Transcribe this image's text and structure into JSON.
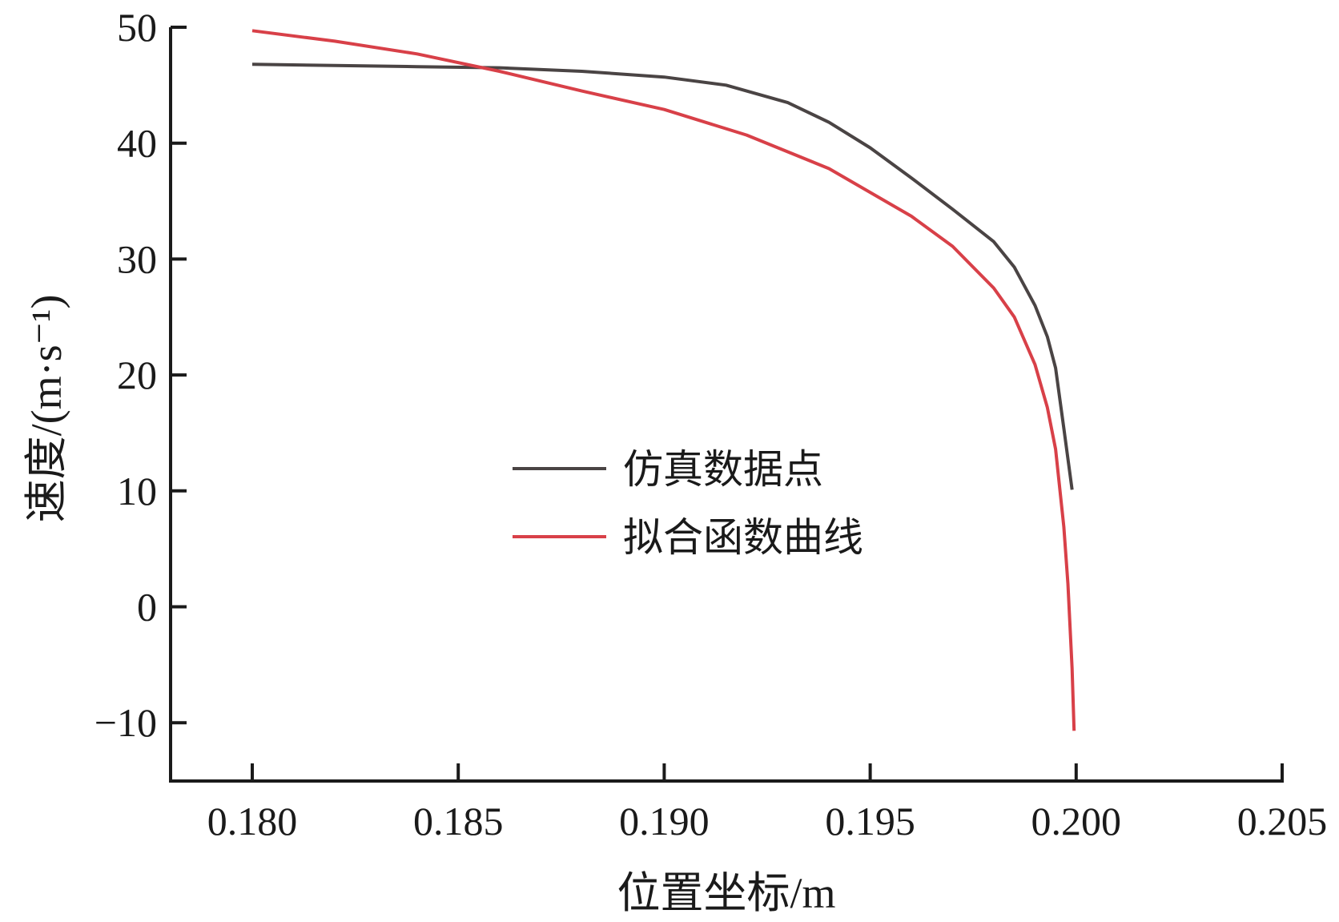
{
  "chart_data": {
    "type": "line",
    "xlabel": "位置坐标/m",
    "ylabel": "速度/(m·s⁻¹)",
    "xlim": [
      0.178,
      0.205
    ],
    "ylim": [
      -15,
      50
    ],
    "x_ticks": [
      0.18,
      0.185,
      0.19,
      0.195,
      0.2,
      0.205
    ],
    "x_tick_labels": [
      "0.180",
      "0.185",
      "0.190",
      "0.195",
      "0.200",
      "0.205"
    ],
    "y_ticks": [
      -10,
      0,
      10,
      20,
      30,
      40,
      50
    ],
    "y_tick_labels": [
      "−10",
      "0",
      "10",
      "20",
      "30",
      "40",
      "50"
    ],
    "legend_position": "center-right",
    "series": [
      {
        "name": "仿真数据点",
        "color": "#4a4444",
        "x": [
          0.18,
          0.182,
          0.184,
          0.186,
          0.188,
          0.19,
          0.1915,
          0.193,
          0.194,
          0.195,
          0.196,
          0.197,
          0.198,
          0.1985,
          0.199,
          0.1993,
          0.1995,
          0.1997,
          0.1999
        ],
        "y": [
          46.8,
          46.7,
          46.6,
          46.5,
          46.2,
          45.7,
          45.0,
          43.5,
          41.8,
          39.6,
          37.0,
          34.3,
          31.5,
          29.3,
          26.0,
          23.3,
          20.6,
          15.4,
          10.1
        ]
      },
      {
        "name": "拟合函数曲线",
        "color": "#d84048",
        "x": [
          0.18,
          0.182,
          0.184,
          0.186,
          0.188,
          0.19,
          0.192,
          0.194,
          0.196,
          0.197,
          0.198,
          0.1985,
          0.199,
          0.1993,
          0.1995,
          0.1997,
          0.1998,
          0.1999,
          0.19995
        ],
        "y": [
          49.7,
          48.8,
          47.7,
          46.2,
          44.5,
          42.9,
          40.7,
          37.8,
          33.7,
          31.1,
          27.5,
          25.0,
          20.9,
          17.2,
          13.6,
          6.9,
          2.0,
          -5.3,
          -10.7
        ]
      }
    ]
  }
}
